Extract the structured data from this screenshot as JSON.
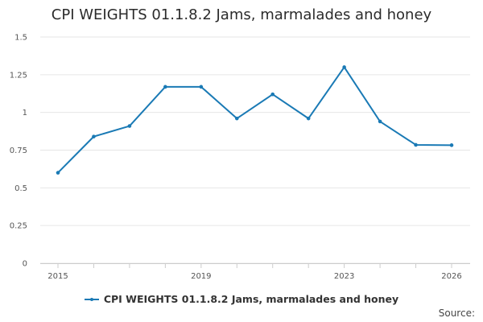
{
  "chart_data": {
    "type": "line",
    "title": "CPI WEIGHTS 01.1.8.2 Jams, marmalades and honey",
    "xlabel": "",
    "ylabel": "",
    "x": [
      2015,
      2016,
      2017,
      2018,
      2019,
      2020,
      2021,
      2022,
      2023,
      2024,
      2025,
      2026
    ],
    "x_tick_labels": [
      "2015",
      "2019",
      "2023",
      "2026"
    ],
    "xlim": [
      2015,
      2026
    ],
    "ylim": [
      0,
      1.5
    ],
    "y_ticks": [
      {
        "value": 0,
        "label": "0"
      },
      {
        "value": 0.25,
        "label": "0.25"
      },
      {
        "value": 0.5,
        "label": "0.5"
      },
      {
        "value": 0.75,
        "label": "0.75"
      },
      {
        "value": 1,
        "label": "1"
      },
      {
        "value": 1.25,
        "label": "1.25"
      },
      {
        "value": 1.5,
        "label": "1.5"
      }
    ],
    "series": [
      {
        "name": "CPI WEIGHTS 01.1.8.2 Jams, marmalades and honey",
        "color": "#1a7ab5",
        "values": [
          0.6,
          0.84,
          0.91,
          1.17,
          1.17,
          0.96,
          1.12,
          0.96,
          1.3,
          0.94,
          0.785,
          0.783
        ]
      }
    ],
    "grid": true,
    "legend_position": "bottom",
    "source_label": "Source:"
  }
}
